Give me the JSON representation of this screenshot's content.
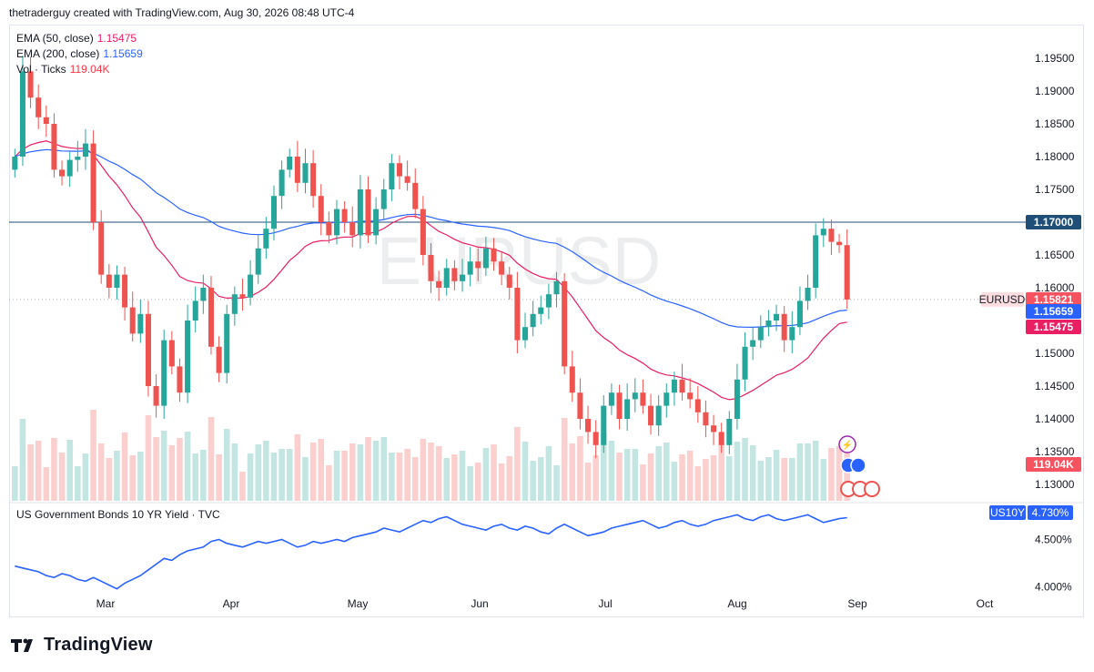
{
  "header": {
    "caption": "thetraderguy created with TradingView.com, Aug 30, 2026 08:48 UTC-4"
  },
  "watermark": "EURUSD",
  "legend": {
    "ema50": {
      "label": "EMA (50, close)",
      "value": "1.15475",
      "color": "#e91e63"
    },
    "ema200": {
      "label": "EMA (200, close)",
      "value": "1.15659",
      "color": "#2962ff"
    },
    "vol": {
      "label": "Vol · Ticks",
      "value": "119.04K",
      "color": "#f23645"
    }
  },
  "badges": {
    "level": "1.17000",
    "price": "1.15821",
    "symbol": "EURUSD",
    "ema200": "1.15659",
    "ema50": "1.15475",
    "volume": "119.04K",
    "yield_symbol": "US10Y",
    "yield_value": "4.730%"
  },
  "subpane": {
    "title": "US Government Bonds 10 YR Yield · TVC"
  },
  "footer": {
    "brand": "TradingView"
  },
  "colors": {
    "up": "#26a69a",
    "down": "#ef5350",
    "ema50": "#e91e63",
    "ema200": "#2962ff",
    "level": "#1f4e79",
    "yield": "#2962ff"
  },
  "chart_data": [
    {
      "type": "candlestick",
      "symbol": "EURUSD",
      "x_tick_labels": [
        "Mar",
        "Apr",
        "May",
        "Jun",
        "Jul",
        "Aug",
        "Sep",
        "Oct"
      ],
      "y_tick_labels": [
        "1.19500",
        "1.19000",
        "1.18500",
        "1.18000",
        "1.17500",
        "1.16500",
        "1.16000",
        "1.15000",
        "1.14500",
        "1.14000",
        "1.13500",
        "1.13000"
      ],
      "ylim": [
        1.1275,
        1.2
      ],
      "horizontal_level": 1.17,
      "last_price": 1.15821,
      "ema50_last": 1.15475,
      "ema200_last": 1.15659,
      "volume_last": "119.04K",
      "closes": [
        1.18,
        1.193,
        1.189,
        1.186,
        1.185,
        1.178,
        1.177,
        1.1795,
        1.18,
        1.182,
        1.17,
        1.162,
        1.16,
        1.162,
        1.157,
        1.153,
        1.156,
        1.145,
        1.142,
        1.152,
        1.148,
        1.144,
        1.155,
        1.158,
        1.16,
        1.151,
        1.147,
        1.156,
        1.159,
        1.1585,
        1.162,
        1.166,
        1.169,
        1.174,
        1.178,
        1.18,
        1.176,
        1.179,
        1.174,
        1.17,
        1.168,
        1.172,
        1.17,
        1.168,
        1.175,
        1.168,
        1.172,
        1.175,
        1.179,
        1.177,
        1.176,
        1.172,
        1.165,
        1.161,
        1.16,
        1.163,
        1.161,
        1.162,
        1.164,
        1.163,
        1.166,
        1.164,
        1.162,
        1.16,
        1.152,
        1.154,
        1.156,
        1.157,
        1.159,
        1.161,
        1.148,
        1.144,
        1.14,
        1.138,
        1.136,
        1.142,
        1.144,
        1.14,
        1.143,
        1.144,
        1.142,
        1.139,
        1.142,
        1.144,
        1.146,
        1.144,
        1.143,
        1.141,
        1.139,
        1.138,
        1.136,
        1.14,
        1.146,
        1.151,
        1.152,
        1.154,
        1.155,
        1.156,
        1.152,
        1.154,
        1.158,
        1.16,
        1.168,
        1.169,
        1.167,
        1.1665,
        1.1582
      ]
    },
    {
      "type": "line",
      "title": "US Government Bonds 10 YR Yield · TVC",
      "symbol": "US10Y",
      "x_tick_labels": [
        "Mar",
        "Apr",
        "May",
        "Jun",
        "Jul",
        "Aug",
        "Sep",
        "Oct"
      ],
      "y_tick_labels": [
        "4.500%",
        "4.000%"
      ],
      "last_value": "4.730%",
      "values": [
        4.22,
        4.2,
        4.18,
        4.16,
        4.12,
        4.1,
        4.14,
        4.12,
        4.08,
        4.06,
        4.1,
        4.06,
        4.02,
        3.98,
        4.04,
        4.08,
        4.12,
        4.18,
        4.24,
        4.3,
        4.28,
        4.34,
        4.38,
        4.4,
        4.42,
        4.48,
        4.5,
        4.46,
        4.44,
        4.42,
        4.45,
        4.48,
        4.46,
        4.48,
        4.5,
        4.46,
        4.42,
        4.44,
        4.48,
        4.46,
        4.48,
        4.5,
        4.48,
        4.52,
        4.54,
        4.56,
        4.58,
        4.62,
        4.6,
        4.58,
        4.62,
        4.66,
        4.7,
        4.68,
        4.72,
        4.74,
        4.7,
        4.66,
        4.64,
        4.62,
        4.6,
        4.64,
        4.66,
        4.62,
        4.6,
        4.64,
        4.62,
        4.58,
        4.56,
        4.62,
        4.66,
        4.62,
        4.58,
        4.54,
        4.56,
        4.58,
        4.62,
        4.64,
        4.66,
        4.68,
        4.7,
        4.66,
        4.62,
        4.64,
        4.68,
        4.7,
        4.66,
        4.64,
        4.66,
        4.7,
        4.72,
        4.74,
        4.76,
        4.72,
        4.7,
        4.74,
        4.76,
        4.72,
        4.7,
        4.72,
        4.74,
        4.76,
        4.72,
        4.68,
        4.7,
        4.72,
        4.73
      ]
    }
  ]
}
